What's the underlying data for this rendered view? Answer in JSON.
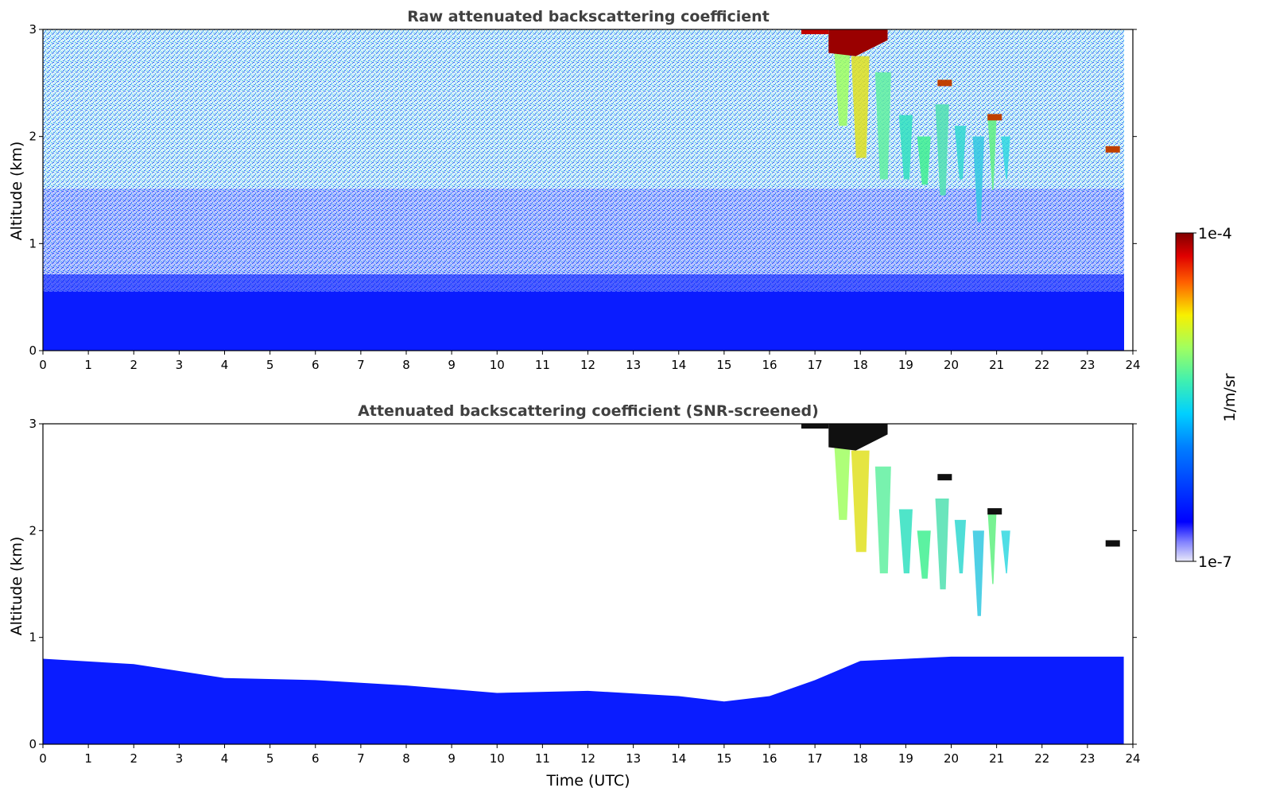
{
  "chart_data": [
    {
      "type": "heatmap",
      "title": "Raw attenuated backscattering coefficient",
      "xlabel": "",
      "ylabel": "Altitude (km)",
      "xlim": [
        0,
        24
      ],
      "ylim": [
        0,
        3
      ],
      "xticks": [
        "0",
        "1",
        "2",
        "3",
        "4",
        "5",
        "6",
        "7",
        "8",
        "9",
        "10",
        "11",
        "12",
        "13",
        "14",
        "15",
        "16",
        "17",
        "18",
        "19",
        "20",
        "21",
        "22",
        "23",
        "24"
      ],
      "yticks": [
        "0",
        "1",
        "2",
        "3"
      ],
      "features": [
        {
          "kind": "surface_aerosol_layer",
          "time_range": [
            0,
            23.8
          ],
          "top_altitude_km": 0.5
        },
        {
          "kind": "noise_background",
          "time_range": [
            0,
            23.8
          ],
          "altitude_range": [
            0.5,
            3
          ]
        },
        {
          "kind": "cloud_virga",
          "time_range": [
            17.5,
            21.5
          ],
          "altitude_range": [
            1.2,
            3
          ]
        },
        {
          "kind": "cloud_top_dense",
          "time_range": [
            17.3,
            18.6
          ],
          "altitude_range": [
            2.75,
            3
          ]
        }
      ]
    },
    {
      "type": "heatmap",
      "title": "Attenuated backscattering coefficient (SNR-screened)",
      "xlabel": "Time (UTC)",
      "ylabel": "Altitude (km)",
      "xlim": [
        0,
        24
      ],
      "ylim": [
        0,
        3
      ],
      "xticks": [
        "0",
        "1",
        "2",
        "3",
        "4",
        "5",
        "6",
        "7",
        "8",
        "9",
        "10",
        "11",
        "12",
        "13",
        "14",
        "15",
        "16",
        "17",
        "18",
        "19",
        "20",
        "21",
        "22",
        "23",
        "24"
      ],
      "yticks": [
        "0",
        "1",
        "2",
        "3"
      ],
      "boundary_layer_top_km": {
        "time": [
          0,
          2,
          4,
          6,
          8,
          10,
          12,
          14,
          15,
          16,
          17,
          18,
          20,
          22,
          23.8
        ],
        "altitude": [
          0.8,
          0.75,
          0.62,
          0.6,
          0.55,
          0.48,
          0.5,
          0.45,
          0.4,
          0.45,
          0.6,
          0.78,
          0.82,
          0.82,
          0.82
        ]
      },
      "features": [
        {
          "kind": "cloud_virga",
          "time_range": [
            17.8,
            21.5
          ],
          "altitude_range": [
            1.2,
            3
          ]
        },
        {
          "kind": "cloud_top_dense",
          "time_range": [
            17.3,
            18.6
          ],
          "altitude_range": [
            2.75,
            3
          ]
        }
      ]
    }
  ],
  "colorbar": {
    "label": "1/m/sr",
    "max_label": "1e-4",
    "min_label": "1e-7",
    "scale": "log",
    "colormap": "jet-like (white→blue→cyan→green→yellow→red→dark red)"
  },
  "colors": {
    "blue": "#0a1cff",
    "cyan": "#00c8ff",
    "green": "#78f078",
    "yellow": "#f0e000",
    "red": "#e01010",
    "darkred": "#800000"
  }
}
